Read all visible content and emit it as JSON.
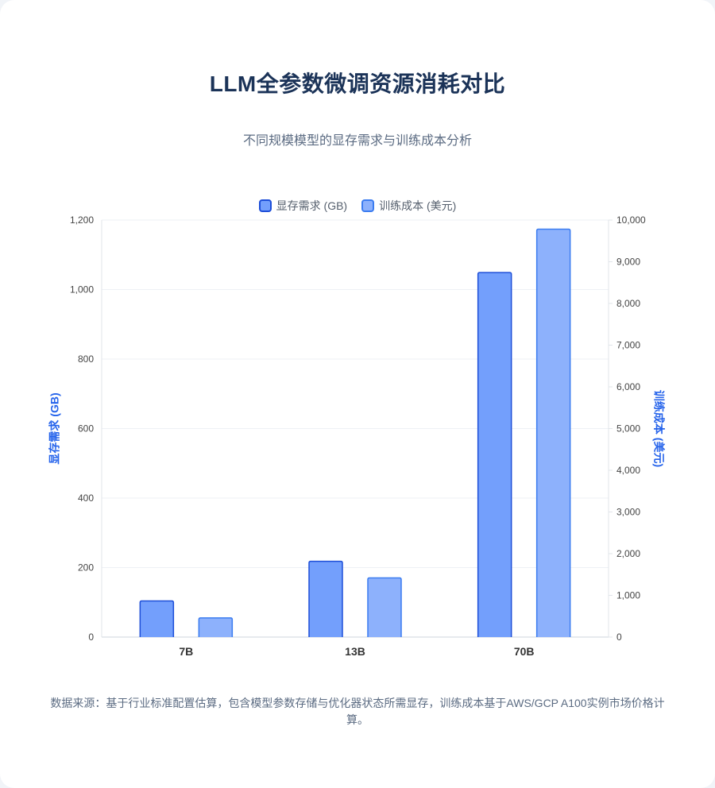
{
  "title": "LLM全参数微调资源消耗对比",
  "subtitle": "不同规模模型的显存需求与训练成本分析",
  "footer": "数据来源：基于行业标准配置估算，包含模型参数存储与优化器状态所需显存，训练成本基于AWS/GCP A100实例市场价格计算。",
  "colors": {
    "memory_fill": "#739ffc",
    "memory_border": "#1d4ed8",
    "cost_fill": "#8db1fc",
    "cost_border": "#3b7cf0",
    "axis_title": "#2563eb",
    "title": "#1b3358"
  },
  "chart_data": {
    "type": "bar",
    "categories": [
      "7B",
      "13B",
      "70B"
    ],
    "series": [
      {
        "name": "显存需求 (GB)",
        "axis": "left",
        "values": [
          104,
          218,
          1049
        ]
      },
      {
        "name": "训练成本 (美元)",
        "axis": "right",
        "values": [
          460,
          1420,
          9780
        ]
      }
    ],
    "ylabel": "显存需求 (GB)",
    "y2label": "训练成本 (美元)",
    "ylim": [
      0,
      1200
    ],
    "y2lim": [
      0,
      10000
    ],
    "yticks": [
      "0",
      "200",
      "400",
      "600",
      "800",
      "1,000",
      "1,200"
    ],
    "y2ticks": [
      "0",
      "1,000",
      "2,000",
      "3,000",
      "4,000",
      "5,000",
      "6,000",
      "7,000",
      "8,000",
      "9,000",
      "10,000"
    ],
    "legend_position": "top",
    "grid": true
  }
}
